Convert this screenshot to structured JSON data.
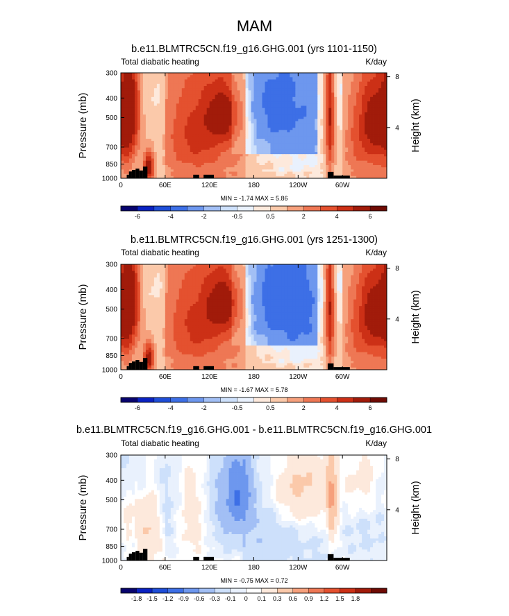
{
  "figure": {
    "title": "MAM"
  },
  "colors": {
    "land": "#000000",
    "frame": "#000000",
    "palette_field": [
      "#08046e",
      "#0a22c2",
      "#1f4ed8",
      "#3d6fe6",
      "#6d97ee",
      "#a2bff5",
      "#cde0fb",
      "#e9f1fd",
      "#fde9dc",
      "#fbc9aa",
      "#f6a07c",
      "#ee7754",
      "#e4512f",
      "#cc3016",
      "#a11b0a",
      "#6f0b04"
    ],
    "palette_diff": [
      "#08046e",
      "#0a22c2",
      "#1f4ed8",
      "#3d6fe6",
      "#6d97ee",
      "#a2bff5",
      "#cde0fb",
      "#e9f1fd",
      "#ffffff",
      "#fde9dc",
      "#fbc9aa",
      "#f6a07c",
      "#ee7754",
      "#e4512f",
      "#cc3016",
      "#a11b0a",
      "#6f0b04"
    ]
  },
  "chart_data": [
    {
      "type": "heatmap",
      "title": "b.e11.BLMTRC5CN.f19_g16.GHG.001 (yrs 1101-1150)",
      "left_label": "Total diabatic heating",
      "right_label": "K/day",
      "ylabel": "Pressure (mb)",
      "ylabel_right": "Height (km)",
      "x_ticks": [
        "0",
        "60E",
        "120E",
        "180",
        "120W",
        "60W"
      ],
      "x_tick_values": [
        0,
        60,
        120,
        180,
        240,
        300
      ],
      "xlim": [
        0,
        360
      ],
      "y_ticks": [
        "300",
        "400",
        "500",
        "700",
        "850",
        "1000"
      ],
      "y_tick_values": [
        300,
        400,
        500,
        700,
        850,
        1000
      ],
      "ylim": [
        1000,
        300
      ],
      "height_ticks": [
        "8",
        "4"
      ],
      "height_tick_values": [
        8,
        4
      ],
      "stats": "MIN = -1.74  MAX =  5.86",
      "min": -1.74,
      "max": 5.86,
      "colorbar_labels": [
        "-6",
        "-4",
        "-2",
        "-0.5",
        "0.5",
        "2",
        "4",
        "6"
      ],
      "field": [
        {
          "lon": 8,
          "p": 500,
          "v": 3.5,
          "w": 9,
          "h": 260
        },
        {
          "lon": 18,
          "p": 430,
          "v": 2.5,
          "w": 10,
          "h": 180
        },
        {
          "lon": 30,
          "p": 420,
          "v": -0.8,
          "w": 6,
          "h": 200
        },
        {
          "lon": 38,
          "p": 880,
          "v": 5.5,
          "w": 5,
          "h": 110
        },
        {
          "lon": 50,
          "p": 580,
          "v": -0.7,
          "w": 12,
          "h": 240
        },
        {
          "lon": 115,
          "p": 520,
          "v": 2.5,
          "w": 35,
          "h": 260
        },
        {
          "lon": 140,
          "p": 480,
          "v": 3,
          "w": 15,
          "h": 110
        },
        {
          "lon": 90,
          "p": 700,
          "v": 1,
          "w": 25,
          "h": 180
        },
        {
          "lon": 210,
          "p": 420,
          "v": -1,
          "w": 35,
          "h": 160
        },
        {
          "lon": 270,
          "p": 800,
          "v": -0.4,
          "w": 50,
          "h": 220
        },
        {
          "lon": 283,
          "p": 500,
          "v": 4.5,
          "w": 4,
          "h": 300
        },
        {
          "lon": 300,
          "p": 560,
          "v": -0.7,
          "w": 9,
          "h": 220
        },
        {
          "lon": 345,
          "p": 480,
          "v": 3.5,
          "w": 18,
          "h": 180
        },
        {
          "lon": 330,
          "p": 700,
          "v": 1.8,
          "w": 30,
          "h": 200
        }
      ],
      "land": [
        [
          8,
          11,
          960
        ],
        [
          11,
          15,
          925
        ],
        [
          15,
          20,
          910
        ],
        [
          20,
          25,
          895
        ],
        [
          25,
          30,
          915
        ],
        [
          30,
          36,
          875
        ],
        [
          98,
          106,
          960
        ],
        [
          112,
          126,
          960
        ],
        [
          280,
          288,
          930
        ],
        [
          288,
          310,
          970
        ]
      ]
    },
    {
      "type": "heatmap",
      "title": "b.e11.BLMTRC5CN.f19_g16.GHG.001 (yrs 1251-1300)",
      "left_label": "Total diabatic heating",
      "right_label": "K/day",
      "ylabel": "Pressure (mb)",
      "ylabel_right": "Height (km)",
      "x_ticks": [
        "0",
        "60E",
        "120E",
        "180",
        "120W",
        "60W"
      ],
      "x_tick_values": [
        0,
        60,
        120,
        180,
        240,
        300
      ],
      "xlim": [
        0,
        360
      ],
      "y_ticks": [
        "300",
        "400",
        "500",
        "700",
        "850",
        "1000"
      ],
      "y_tick_values": [
        300,
        400,
        500,
        700,
        850,
        1000
      ],
      "ylim": [
        1000,
        300
      ],
      "height_ticks": [
        "8",
        "4"
      ],
      "height_tick_values": [
        8,
        4
      ],
      "stats": "MIN = -1.67  MAX =  5.78",
      "min": -1.67,
      "max": 5.78,
      "colorbar_labels": [
        "-6",
        "-4",
        "-2",
        "-0.5",
        "0.5",
        "2",
        "4",
        "6"
      ],
      "field": [
        {
          "lon": 8,
          "p": 500,
          "v": 3.5,
          "w": 9,
          "h": 260
        },
        {
          "lon": 18,
          "p": 430,
          "v": 2.5,
          "w": 10,
          "h": 180
        },
        {
          "lon": 30,
          "p": 420,
          "v": -0.8,
          "w": 6,
          "h": 200
        },
        {
          "lon": 38,
          "p": 880,
          "v": 5.4,
          "w": 5,
          "h": 110
        },
        {
          "lon": 50,
          "p": 580,
          "v": -0.7,
          "w": 12,
          "h": 240
        },
        {
          "lon": 115,
          "p": 520,
          "v": 2.4,
          "w": 35,
          "h": 260
        },
        {
          "lon": 140,
          "p": 470,
          "v": 3.2,
          "w": 15,
          "h": 110
        },
        {
          "lon": 90,
          "p": 700,
          "v": 1,
          "w": 25,
          "h": 180
        },
        {
          "lon": 220,
          "p": 440,
          "v": -1.3,
          "w": 35,
          "h": 170
        },
        {
          "lon": 270,
          "p": 800,
          "v": -0.4,
          "w": 50,
          "h": 220
        },
        {
          "lon": 283,
          "p": 500,
          "v": 4.6,
          "w": 4,
          "h": 300
        },
        {
          "lon": 300,
          "p": 560,
          "v": -0.7,
          "w": 9,
          "h": 220
        },
        {
          "lon": 345,
          "p": 480,
          "v": 3.5,
          "w": 18,
          "h": 180
        },
        {
          "lon": 330,
          "p": 700,
          "v": 1.8,
          "w": 30,
          "h": 200
        }
      ],
      "land": [
        [
          8,
          11,
          960
        ],
        [
          11,
          15,
          925
        ],
        [
          15,
          20,
          910
        ],
        [
          20,
          25,
          895
        ],
        [
          25,
          30,
          915
        ],
        [
          30,
          36,
          875
        ],
        [
          98,
          106,
          960
        ],
        [
          112,
          126,
          960
        ],
        [
          280,
          288,
          930
        ],
        [
          288,
          310,
          970
        ]
      ]
    },
    {
      "type": "heatmap",
      "title": "b.e11.BLMTRC5CN.f19_g16.GHG.001 - b.e11.BLMTRC5CN.f19_g16.GHG.001",
      "left_label": "Total diabatic heating",
      "right_label": "K/day",
      "ylabel": "Pressure (mb)",
      "ylabel_right": "Height (km)",
      "x_ticks": [
        "0",
        "60E",
        "120E",
        "180",
        "120W",
        "60W"
      ],
      "x_tick_values": [
        0,
        60,
        120,
        180,
        240,
        300
      ],
      "xlim": [
        0,
        360
      ],
      "y_ticks": [
        "300",
        "400",
        "500",
        "700",
        "850",
        "1000"
      ],
      "y_tick_values": [
        300,
        400,
        500,
        700,
        850,
        1000
      ],
      "ylim": [
        1000,
        300
      ],
      "height_ticks": [
        "8",
        "4"
      ],
      "height_tick_values": [
        8,
        4
      ],
      "stats": "MIN = -0.75  MAX =  0.72",
      "min": -0.75,
      "max": 0.72,
      "colorbar_labels": [
        "-1.8",
        "-1.5",
        "-1.2",
        "-0.9",
        "-0.6",
        "-0.3",
        "-0.1",
        "0",
        "0.1",
        "0.3",
        "0.6",
        "0.9",
        "1.2",
        "1.5",
        "1.8"
      ],
      "field": [
        {
          "lon": 160,
          "p": 460,
          "v": -0.7,
          "w": 12,
          "h": 150
        },
        {
          "lon": 140,
          "p": 520,
          "v": -0.35,
          "w": 22,
          "h": 220
        },
        {
          "lon": 245,
          "p": 450,
          "v": 0.45,
          "w": 30,
          "h": 150
        },
        {
          "lon": 285,
          "p": 500,
          "v": 0.5,
          "w": 5,
          "h": 200
        },
        {
          "lon": 40,
          "p": 700,
          "v": 0.3,
          "w": 12,
          "h": 200
        },
        {
          "lon": 100,
          "p": 600,
          "v": 0.25,
          "w": 15,
          "h": 200
        },
        {
          "lon": 60,
          "p": 550,
          "v": -0.2,
          "w": 14,
          "h": 250
        },
        {
          "lon": 20,
          "p": 350,
          "v": -0.15,
          "w": 18,
          "h": 100
        },
        {
          "lon": 330,
          "p": 700,
          "v": -0.15,
          "w": 30,
          "h": 250
        },
        {
          "lon": 200,
          "p": 750,
          "v": -0.15,
          "w": 30,
          "h": 200
        },
        {
          "lon": 330,
          "p": 420,
          "v": 0.2,
          "w": 15,
          "h": 120
        },
        {
          "lon": 10,
          "p": 600,
          "v": 0.2,
          "w": 6,
          "h": 150
        }
      ],
      "land": [
        [
          8,
          11,
          960
        ],
        [
          11,
          15,
          925
        ],
        [
          15,
          20,
          910
        ],
        [
          20,
          25,
          895
        ],
        [
          25,
          30,
          915
        ],
        [
          30,
          36,
          875
        ],
        [
          98,
          106,
          960
        ],
        [
          112,
          126,
          960
        ],
        [
          280,
          288,
          930
        ],
        [
          288,
          310,
          970
        ]
      ]
    }
  ]
}
